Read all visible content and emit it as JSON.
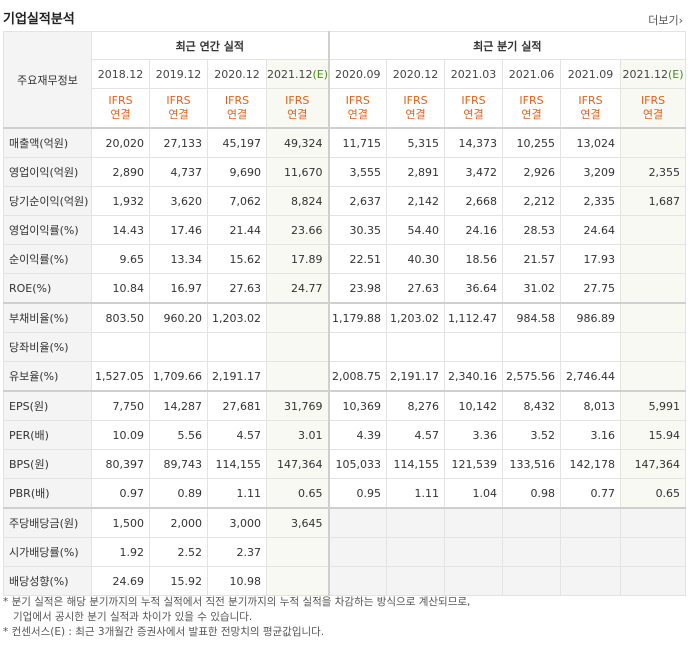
{
  "header": {
    "title": "기업실적분석",
    "more": "더보기›"
  },
  "table": {
    "corner": "주요재무정보",
    "annual_title": "최근 연간 실적",
    "quarter_title": "최근 분기 실적",
    "periods": [
      "2018.12",
      "2019.12",
      "2020.12",
      "2021.12(E)",
      "2020.09",
      "2020.12",
      "2021.03",
      "2021.06",
      "2021.09",
      "2021.12(E)"
    ],
    "ifrs": "IFRS",
    "consolidated": "연결",
    "rows": [
      {
        "label": "매출액(억원)",
        "values": [
          "20,020",
          "27,133",
          "45,197",
          "49,324",
          "11,715",
          "5,315",
          "14,373",
          "10,255",
          "13,024",
          ""
        ]
      },
      {
        "label": "영업이익(억원)",
        "values": [
          "2,890",
          "4,737",
          "9,690",
          "11,670",
          "3,555",
          "2,891",
          "3,472",
          "2,926",
          "3,209",
          "2,355"
        ]
      },
      {
        "label": "당기순이익(억원)",
        "values": [
          "1,932",
          "3,620",
          "7,062",
          "8,824",
          "2,637",
          "2,142",
          "2,668",
          "2,212",
          "2,335",
          "1,687"
        ]
      },
      {
        "label": "영업이익률(%)",
        "values": [
          "14.43",
          "17.46",
          "21.44",
          "23.66",
          "30.35",
          "54.40",
          "24.16",
          "28.53",
          "24.64",
          ""
        ]
      },
      {
        "label": "순이익률(%)",
        "values": [
          "9.65",
          "13.34",
          "15.62",
          "17.89",
          "22.51",
          "40.30",
          "18.56",
          "21.57",
          "17.93",
          ""
        ]
      },
      {
        "label": "ROE(%)",
        "values": [
          "10.84",
          "16.97",
          "27.63",
          "24.77",
          "23.98",
          "27.63",
          "36.64",
          "31.02",
          "27.75",
          ""
        ]
      },
      {
        "label": "부채비율(%)",
        "values": [
          "803.50",
          "960.20",
          "1,203.02",
          "",
          "1,179.88",
          "1,203.02",
          "1,112.47",
          "984.58",
          "986.89",
          ""
        ]
      },
      {
        "label": "당좌비율(%)",
        "values": [
          "",
          "",
          "",
          "",
          "",
          "",
          "",
          "",
          "",
          ""
        ]
      },
      {
        "label": "유보율(%)",
        "values": [
          "1,527.05",
          "1,709.66",
          "2,191.17",
          "",
          "2,008.75",
          "2,191.17",
          "2,340.16",
          "2,575.56",
          "2,746.44",
          ""
        ]
      },
      {
        "label": "EPS(원)",
        "values": [
          "7,750",
          "14,287",
          "27,681",
          "31,769",
          "10,369",
          "8,276",
          "10,142",
          "8,432",
          "8,013",
          "5,991"
        ]
      },
      {
        "label": "PER(배)",
        "values": [
          "10.09",
          "5.56",
          "4.57",
          "3.01",
          "4.39",
          "4.57",
          "3.36",
          "3.52",
          "3.16",
          "15.94"
        ]
      },
      {
        "label": "BPS(원)",
        "values": [
          "80,397",
          "89,743",
          "114,155",
          "147,364",
          "105,033",
          "114,155",
          "121,539",
          "133,516",
          "142,178",
          "147,364"
        ]
      },
      {
        "label": "PBR(배)",
        "values": [
          "0.97",
          "0.89",
          "1.11",
          "0.65",
          "0.95",
          "1.11",
          "1.04",
          "0.98",
          "0.77",
          "0.65"
        ]
      },
      {
        "label": "주당배당금(원)",
        "values": [
          "1,500",
          "2,000",
          "3,000",
          "3,645",
          "",
          "",
          "",
          "",
          "",
          ""
        ]
      },
      {
        "label": "시가배당률(%)",
        "values": [
          "1.92",
          "2.52",
          "2.37",
          "",
          "",
          "",
          "",
          "",
          "",
          ""
        ]
      },
      {
        "label": "배당성향(%)",
        "values": [
          "24.69",
          "15.92",
          "10.98",
          "",
          "",
          "",
          "",
          "",
          "",
          ""
        ]
      }
    ]
  },
  "notes": [
    "* 분기 실적은 해당 분기까지의 누적 실적에서 직전 분기까지의 누적 실적을 차감하는 방식으로 계산되므로,",
    "기업에서 공시한 분기 실적과 차이가 있을 수 있습니다.",
    "* 컨센서스(E) : 최근 3개월간 증권사에서 발표한 전망치의 평균값입니다."
  ]
}
